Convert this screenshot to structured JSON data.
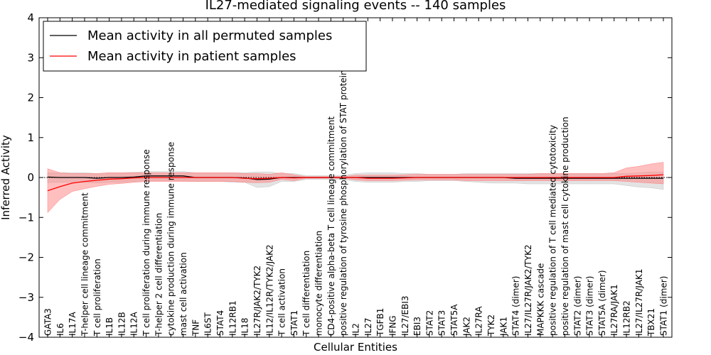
{
  "chart_data": {
    "type": "line",
    "title": "IL27-mediated signaling events -- 140 samples",
    "xlabel": "Cellular Entities",
    "ylabel": "Inferred Activity",
    "ylim": [
      -4,
      4
    ],
    "yticks": [
      "−4",
      "−3",
      "−2",
      "−1",
      "0",
      "1",
      "2",
      "3",
      "4"
    ],
    "ytick_values": [
      -4,
      -3,
      -2,
      -1,
      0,
      1,
      2,
      3,
      4
    ],
    "legend_position": "top-left",
    "categories": [
      "GATA3",
      "IL6",
      "IL17A",
      "T-helper cell lineage commitment",
      "T cell proliferation",
      "IL1B",
      "IL12B",
      "IL12A",
      "T cell proliferation during immune response",
      "T-helper 2 cell differentiation",
      "cytokine production during immune response",
      "mast cell activation",
      "TNF",
      "IL6ST",
      "STAT4",
      "IL12RB1",
      "IL18",
      "IL27R/JAK2/TYK2",
      "IL12/IL12R/TYK2/JAK2",
      "T cell activation",
      "STAT1",
      "T cell differentiation",
      "monocyte differentiation",
      "CD4-positive alpha-beta T cell lineage commitment",
      "positive regulation of tyrosine phosphorylation of STAT protein",
      "IL2",
      "IL27",
      "TGFB1",
      "IFNG",
      "IL27/EBI3",
      "EBI3",
      "STAT2",
      "STAT3",
      "STAT5A",
      "JAK2",
      "IL27RA",
      "TYK2",
      "JAK1",
      "STAT4 (dimer)",
      "IL27/IL27R/JAK2/TYK2",
      "MAPKKK cascade",
      "positive regulation of T cell mediated cytotoxicity",
      "positive regulation of mast cell cytokine production",
      "STAT2 (dimer)",
      "STAT3 (dimer)",
      "STAT5A (dimer)",
      "IL27RA/JAK1",
      "IL12RB2",
      "IL27/IL27R/JAK1",
      "TBX21",
      "STAT1 (dimer)"
    ],
    "series": [
      {
        "name": "Mean activity in all permuted samples",
        "color": "#000000",
        "band_color": "#c8c8c8",
        "values": [
          0.01,
          0.0,
          0.0,
          0.0,
          -0.02,
          0.0,
          0.0,
          0.01,
          0.04,
          0.04,
          0.04,
          0.04,
          0.0,
          0.0,
          0.0,
          0.0,
          -0.01,
          -0.05,
          -0.04,
          0.0,
          0.0,
          0.0,
          0.0,
          0.0,
          0.0,
          0.0,
          0.0,
          0.0,
          0.0,
          0.0,
          0.0,
          0.0,
          0.0,
          0.0,
          0.0,
          0.0,
          0.0,
          0.0,
          -0.02,
          -0.02,
          -0.02,
          -0.02,
          -0.02,
          -0.02,
          -0.02,
          -0.02,
          -0.02,
          -0.02,
          -0.02,
          -0.02,
          -0.02
        ],
        "lower": [
          -0.13,
          -0.12,
          -0.12,
          -0.12,
          -0.14,
          -0.12,
          -0.12,
          -0.1,
          -0.08,
          -0.08,
          -0.08,
          -0.08,
          -0.1,
          -0.1,
          -0.1,
          -0.12,
          -0.12,
          -0.25,
          -0.23,
          -0.1,
          -0.1,
          -0.05,
          -0.05,
          -0.05,
          -0.05,
          -0.1,
          -0.12,
          -0.12,
          -0.12,
          -0.1,
          -0.1,
          -0.08,
          -0.08,
          -0.08,
          -0.1,
          -0.12,
          -0.14,
          -0.14,
          -0.14,
          -0.16,
          -0.16,
          -0.16,
          -0.16,
          -0.16,
          -0.16,
          -0.16,
          -0.16,
          -0.2,
          -0.24,
          -0.26,
          -0.3
        ],
        "upper": [
          0.12,
          0.12,
          0.12,
          0.12,
          0.1,
          0.12,
          0.12,
          0.13,
          0.15,
          0.15,
          0.15,
          0.15,
          0.12,
          0.12,
          0.12,
          0.12,
          0.12,
          0.14,
          0.14,
          0.1,
          0.1,
          0.05,
          0.05,
          0.05,
          0.05,
          0.1,
          0.12,
          0.12,
          0.12,
          0.1,
          0.1,
          0.08,
          0.08,
          0.08,
          0.1,
          0.1,
          0.1,
          0.1,
          0.1,
          0.1,
          0.1,
          0.1,
          0.1,
          0.1,
          0.1,
          0.1,
          0.1,
          0.1,
          0.12,
          0.14,
          0.14
        ]
      },
      {
        "name": "Mean activity in patient samples",
        "color": "#ff0000",
        "band_color": "#ff8080",
        "values": [
          -0.33,
          -0.23,
          -0.14,
          -0.1,
          -0.07,
          -0.04,
          -0.03,
          -0.01,
          0.0,
          0.0,
          0.0,
          0.0,
          0.0,
          0.0,
          0.0,
          0.0,
          -0.02,
          -0.03,
          -0.02,
          0.0,
          -0.01,
          0.0,
          0.0,
          0.0,
          0.0,
          0.0,
          -0.02,
          -0.02,
          -0.02,
          -0.01,
          0.0,
          0.0,
          0.0,
          0.0,
          0.0,
          0.0,
          0.0,
          0.0,
          0.0,
          0.0,
          0.0,
          0.0,
          0.0,
          0.0,
          0.0,
          0.0,
          0.0,
          0.03,
          0.04,
          0.05,
          0.07
        ],
        "lower": [
          -0.88,
          -0.55,
          -0.35,
          -0.28,
          -0.22,
          -0.17,
          -0.15,
          -0.12,
          -0.1,
          -0.1,
          -0.1,
          -0.1,
          -0.1,
          -0.1,
          -0.1,
          -0.1,
          -0.12,
          -0.13,
          -0.12,
          -0.05,
          -0.08,
          -0.02,
          -0.02,
          -0.02,
          -0.02,
          -0.06,
          -0.08,
          -0.08,
          -0.08,
          -0.07,
          -0.06,
          -0.06,
          -0.06,
          -0.06,
          -0.08,
          -0.08,
          -0.08,
          -0.08,
          -0.08,
          -0.08,
          -0.08,
          -0.08,
          -0.08,
          -0.08,
          -0.08,
          -0.08,
          -0.08,
          -0.1,
          -0.12,
          -0.14,
          -0.16
        ],
        "upper": [
          0.22,
          0.12,
          0.1,
          0.1,
          0.1,
          0.12,
          0.12,
          0.12,
          0.12,
          0.12,
          0.12,
          0.12,
          0.12,
          0.12,
          0.12,
          0.12,
          0.1,
          0.1,
          0.08,
          0.12,
          0.07,
          0.02,
          0.02,
          0.02,
          0.02,
          0.06,
          0.06,
          0.06,
          0.06,
          0.07,
          0.08,
          0.08,
          0.08,
          0.08,
          0.08,
          0.08,
          0.08,
          0.08,
          0.08,
          0.08,
          0.1,
          0.1,
          0.1,
          0.1,
          0.1,
          0.1,
          0.12,
          0.24,
          0.28,
          0.34,
          0.38
        ]
      }
    ],
    "reference_line": 0
  }
}
